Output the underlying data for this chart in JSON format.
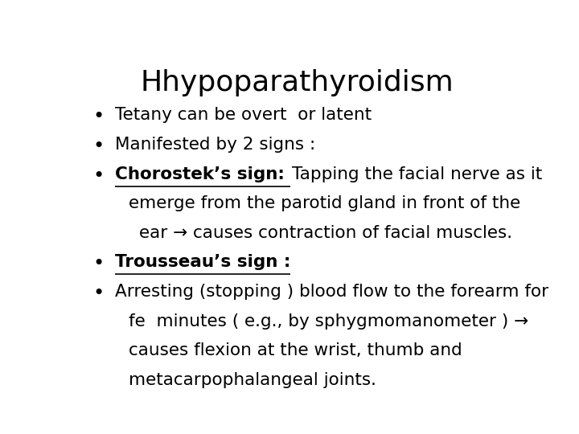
{
  "title": "Hhypoparathyroidism",
  "background_color": "#ffffff",
  "text_color": "#000000",
  "title_fontsize": 26,
  "body_fontsize": 15.5,
  "lines": [
    {
      "type": "bullet",
      "text": "Tetany can be overt  or latent",
      "indent": 0
    },
    {
      "type": "bullet",
      "text": "Manifested by 2 signs :",
      "indent": 0
    },
    {
      "type": "bullet_underline_mixed",
      "underline": "Chorostek’s sign: ",
      "normal": "Tapping the facial nerve as it",
      "indent": 0
    },
    {
      "type": "continuation",
      "text": "emerge from the parotid gland in front of the",
      "indent": 1
    },
    {
      "type": "continuation",
      "text": "ear → causes contraction of facial muscles.",
      "indent": 2
    },
    {
      "type": "bullet_underline_only",
      "underline": "Trousseau’s sign :",
      "indent": 0
    },
    {
      "type": "bullet",
      "text": "Arresting (stopping ) blood flow to the forearm for",
      "indent": 0
    },
    {
      "type": "continuation",
      "text": "fe  minutes ( e.g., by sphygmomanometer ) →",
      "indent": 1
    },
    {
      "type": "continuation",
      "text": "causes flexion at the wrist, thumb and",
      "indent": 1
    },
    {
      "type": "continuation",
      "text": "metacarpophalangeal joints.",
      "indent": 1
    }
  ]
}
